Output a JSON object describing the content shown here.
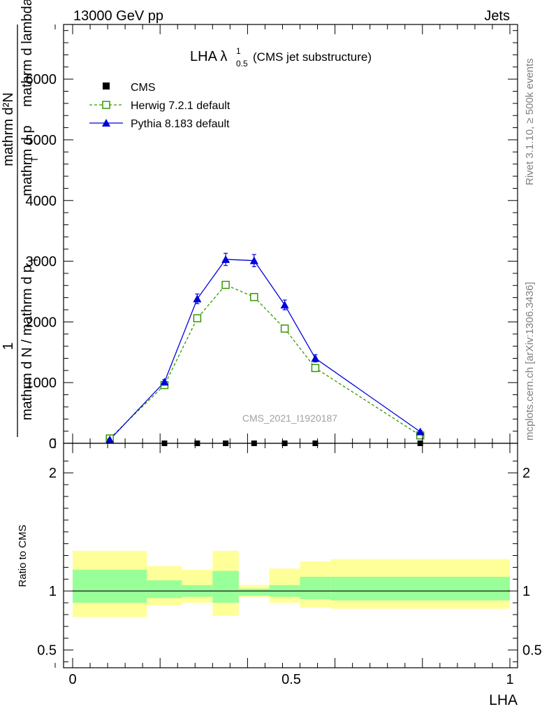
{
  "header": {
    "left": "13000 GeV pp",
    "right": "Jets"
  },
  "side_text": {
    "top": "Rivet 3.1.10, ≥ 500k events",
    "bottom": "mcplots.cern.ch [arXiv:1306.3436]"
  },
  "watermark": "CMS_2021_I1920187",
  "colors": {
    "herwig": "#339900",
    "pythia": "#0000dd",
    "band_inner": "#99ff99",
    "band_outer": "#ffff99",
    "data": "#000000"
  },
  "chart_data": {
    "type": "line",
    "title": {
      "main": "LHA λ",
      "sup": "1",
      "sub": "0.5",
      "suffix": " (CMS jet substructure)"
    },
    "xlabel": "LHA",
    "ylabel_num": "1",
    "ylabel_num_stack": [
      "mathrm d²N",
      "mathrm d p",
      "T",
      "mathrm d lambda"
    ],
    "ylabel_den": "mathrm d N / mathrm d p",
    "ylabel_den_sub": "T",
    "ratio_ylabel": "Ratio to CMS",
    "xlim": [
      -0.04,
      1.02
    ],
    "ylim": [
      0,
      6900
    ],
    "ratio_ylim": [
      0.35,
      2.25
    ],
    "x_ticks": [
      0,
      0.5,
      1
    ],
    "x_tick_labels": [
      "0",
      "0.5",
      "1"
    ],
    "y_ticks": [
      0,
      1000,
      2000,
      3000,
      4000,
      5000,
      6000
    ],
    "y_tick_labels": [
      "0",
      "1000",
      "2000",
      "3000",
      "4000",
      "5000",
      "6000"
    ],
    "ratio_ticks": [
      0.5,
      1,
      2
    ],
    "ratio_tick_labels": [
      "0.5",
      "1",
      "2"
    ],
    "legend": [
      {
        "name": "CMS",
        "marker": "square"
      },
      {
        "name": "Herwig 7.2.1 default",
        "marker": "open-square"
      },
      {
        "name": "Pythia 8.183 default",
        "marker": "triangle"
      }
    ],
    "data_x": [
      0.21,
      0.285,
      0.35,
      0.415,
      0.485,
      0.555,
      0.795
    ],
    "data_y": [
      0,
      0,
      0,
      0,
      0,
      0,
      0
    ],
    "series": [
      {
        "name": "Herwig 7.2.1 default",
        "x": [
          0.085,
          0.21,
          0.285,
          0.35,
          0.415,
          0.485,
          0.555,
          0.795
        ],
        "values": [
          80,
          960,
          2060,
          2610,
          2410,
          1890,
          1240,
          130
        ]
      },
      {
        "name": "Pythia 8.183 default",
        "x": [
          0.085,
          0.21,
          0.285,
          0.35,
          0.415,
          0.485,
          0.555,
          0.795
        ],
        "values": [
          60,
          1010,
          2380,
          3030,
          3010,
          2280,
          1400,
          190
        ],
        "errors": [
          20,
          40,
          80,
          100,
          100,
          80,
          60,
          20
        ]
      }
    ],
    "ratio_bands": [
      {
        "x0": 0.0,
        "x1": 0.17,
        "inner": [
          0.9,
          1.18
        ],
        "outer": [
          0.78,
          1.34
        ]
      },
      {
        "x0": 0.17,
        "x1": 0.25,
        "inner": [
          0.94,
          1.09
        ],
        "outer": [
          0.88,
          1.21
        ]
      },
      {
        "x0": 0.25,
        "x1": 0.32,
        "inner": [
          0.95,
          1.05
        ],
        "outer": [
          0.9,
          1.18
        ]
      },
      {
        "x0": 0.32,
        "x1": 0.38,
        "inner": [
          0.9,
          1.17
        ],
        "outer": [
          0.79,
          1.34
        ]
      },
      {
        "x0": 0.38,
        "x1": 0.45,
        "inner": [
          0.96,
          1.02
        ],
        "outer": [
          0.95,
          1.05
        ]
      },
      {
        "x0": 0.45,
        "x1": 0.52,
        "inner": [
          0.95,
          1.05
        ],
        "outer": [
          0.9,
          1.19
        ]
      },
      {
        "x0": 0.52,
        "x1": 0.59,
        "inner": [
          0.93,
          1.12
        ],
        "outer": [
          0.86,
          1.25
        ]
      },
      {
        "x0": 0.59,
        "x1": 1.0,
        "inner": [
          0.92,
          1.12
        ],
        "outer": [
          0.85,
          1.27
        ]
      }
    ]
  }
}
